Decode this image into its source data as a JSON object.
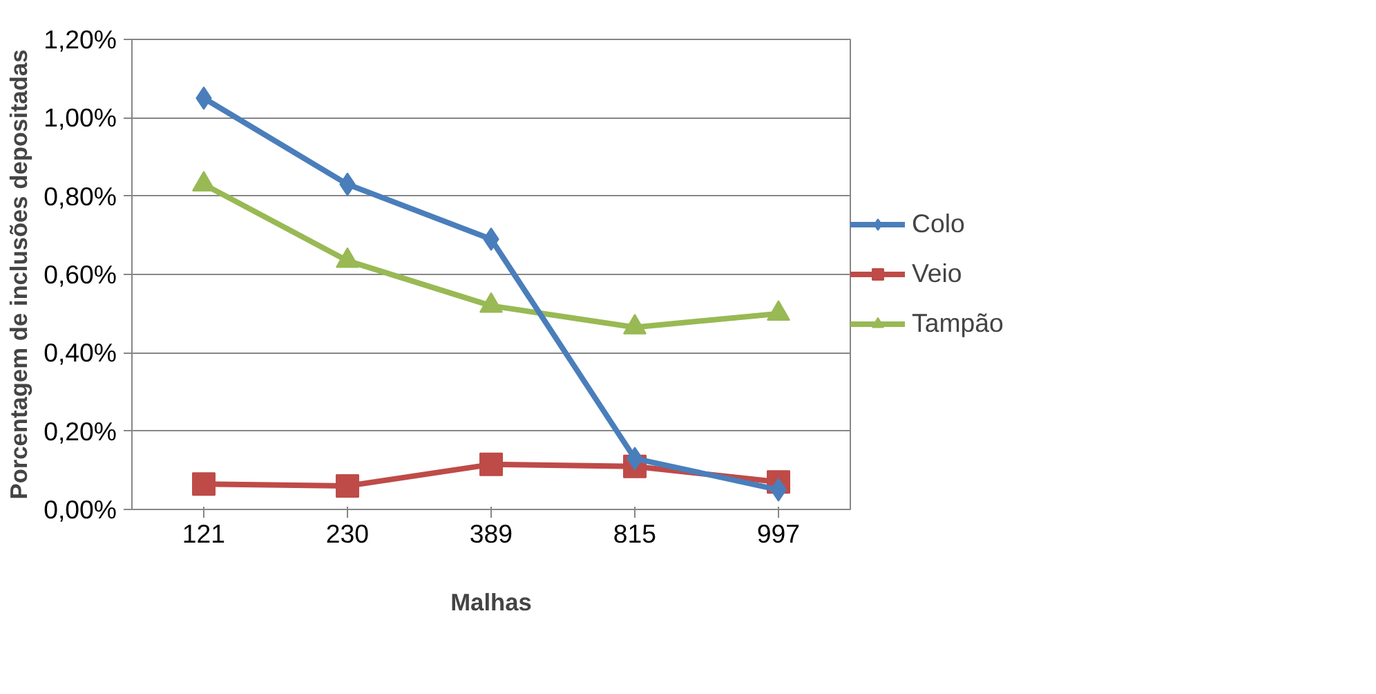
{
  "chart_data": {
    "type": "line",
    "xlabel": "Malhas",
    "ylabel": "Porcentagem de inclusões depositadas",
    "categories": [
      "121",
      "230",
      "389",
      "815",
      "997"
    ],
    "series": [
      {
        "name": "Colo",
        "color": "#4a7ebb",
        "marker": "diamond",
        "values": [
          1.05,
          0.83,
          0.69,
          0.13,
          0.05
        ]
      },
      {
        "name": "Veio",
        "color": "#be4b48",
        "marker": "square",
        "values": [
          0.065,
          0.06,
          0.115,
          0.11,
          0.07
        ]
      },
      {
        "name": "Tampão",
        "color": "#98b954",
        "marker": "triangle",
        "values": [
          0.83,
          0.635,
          0.52,
          0.465,
          0.5
        ]
      }
    ],
    "ylim": [
      0,
      1.2
    ],
    "yticks": [
      {
        "value": 0,
        "label": "0,00%"
      },
      {
        "value": 0.2,
        "label": "0,20%"
      },
      {
        "value": 0.4,
        "label": "0,40%"
      },
      {
        "value": 0.6,
        "label": "0,60%"
      },
      {
        "value": 0.8,
        "label": "0,80%"
      },
      {
        "value": 1.0,
        "label": "1,00%"
      },
      {
        "value": 1.2,
        "label": "1,20%"
      }
    ],
    "grid": "y",
    "legend": "right",
    "line_style": "solid"
  }
}
